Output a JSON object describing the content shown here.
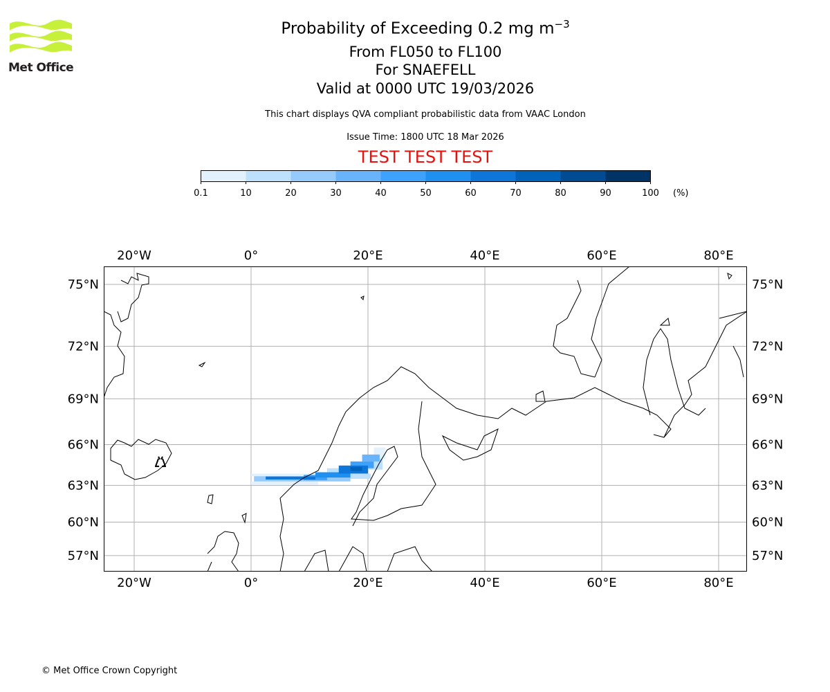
{
  "header": {
    "title": "Probability of Exceeding 0.2 mg m",
    "title_superscript": "−3",
    "level_range": "From FL050 to FL100",
    "volcano": "For SNAEFELL",
    "valid_time": "Valid at 0000 UTC 19/03/2026",
    "description": "This chart displays QVA compliant probabilistic data from VAAC London",
    "issue_time": "Issue Time: 1800 UTC 18 Mar 2026",
    "test_banner": "TEST TEST TEST"
  },
  "logo": {
    "text": "Met Office"
  },
  "colorbar": {
    "tick_labels": [
      "0.1",
      "10",
      "20",
      "30",
      "40",
      "50",
      "60",
      "70",
      "80",
      "90",
      "100"
    ],
    "unit": "(%)",
    "colors": [
      "#e3f1fd",
      "#bde0fc",
      "#94cbfc",
      "#69b3fb",
      "#3ea1fc",
      "#1f8ff0",
      "#0e75d9",
      "#0062b9",
      "#004b92",
      "#003366"
    ]
  },
  "chart_data": {
    "type": "heatmap",
    "title": "Probability of Exceeding 0.2 mg m-3",
    "projection": "mercator",
    "lon_range": [
      -25,
      85
    ],
    "lat_range": [
      55.5,
      76
    ],
    "grid": true,
    "lon_ticks": [
      -20,
      0,
      20,
      40,
      60,
      80
    ],
    "lon_tick_labels": [
      "20°W",
      "0°",
      "20°E",
      "40°E",
      "60°E",
      "80°E"
    ],
    "lat_ticks": [
      75,
      72,
      69,
      66,
      63,
      60,
      57
    ],
    "lat_tick_labels": [
      "75°N",
      "72°N",
      "69°N",
      "66°N",
      "63°N",
      "60°N",
      "57°N"
    ],
    "volcano_location": {
      "lon": -15.5,
      "lat": 64.8
    },
    "cells": [
      {
        "lon": [
          0,
          11.5
        ],
        "lat": [
          63.05,
          63.3
        ],
        "p": 5
      },
      {
        "lon": [
          0,
          11
        ],
        "lat": [
          63.7,
          63.9
        ],
        "p": 5
      },
      {
        "lon": [
          21,
          23
        ],
        "lat": [
          65.0,
          65.8
        ],
        "p": 5
      },
      {
        "lon": [
          13,
          19
        ],
        "lat": [
          64.0,
          64.3
        ],
        "p": 15
      },
      {
        "lon": [
          17,
          20.5
        ],
        "lat": [
          63.5,
          63.9
        ],
        "p": 15
      },
      {
        "lon": [
          20,
          22.5
        ],
        "lat": [
          64.2,
          65.0
        ],
        "p": 15
      },
      {
        "lon": [
          0.5,
          11
        ],
        "lat": [
          63.3,
          63.7
        ],
        "p": 25
      },
      {
        "lon": [
          11,
          17
        ],
        "lat": [
          63.3,
          63.6
        ],
        "p": 25
      },
      {
        "lon": [
          19,
          22
        ],
        "lat": [
          64.8,
          65.3
        ],
        "p": 35
      },
      {
        "lon": [
          9,
          13
        ],
        "lat": [
          63.4,
          63.8
        ],
        "p": 45
      },
      {
        "lon": [
          17,
          21
        ],
        "lat": [
          64.3,
          64.8
        ],
        "p": 45
      },
      {
        "lon": [
          11,
          17
        ],
        "lat": [
          63.6,
          64.0
        ],
        "p": 55
      },
      {
        "lon": [
          2.5,
          11
        ],
        "lat": [
          63.45,
          63.68
        ],
        "p": 65
      },
      {
        "lon": [
          15,
          20
        ],
        "lat": [
          63.9,
          64.5
        ],
        "p": 65
      },
      {
        "lon": [
          17,
          19
        ],
        "lat": [
          64.1,
          64.4
        ],
        "p": 75
      }
    ]
  },
  "footer": {
    "copyright": "© Met Office Crown Copyright"
  }
}
